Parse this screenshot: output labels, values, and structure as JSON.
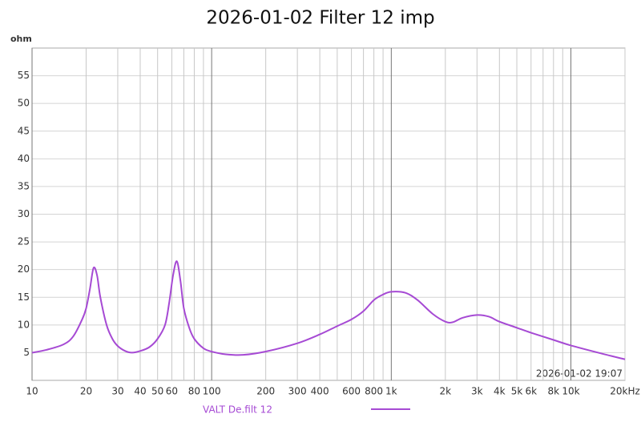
{
  "chart_data": {
    "type": "line",
    "title": "2026-01-02 Filter 12 imp",
    "y_label": "ohm",
    "annotation": "2026-01-02 19:07",
    "log_x": true,
    "xlim": [
      10,
      20000
    ],
    "ylim": [
      0,
      60
    ],
    "xticks": [
      10,
      20,
      30,
      40,
      50,
      60,
      80,
      100,
      200,
      300,
      400,
      600,
      800,
      {
        "value": 1000,
        "label": "1k"
      },
      {
        "value": 2000,
        "label": "2k"
      },
      {
        "value": 3000,
        "label": "3k"
      },
      {
        "value": 4000,
        "label": "4k"
      },
      {
        "value": 5000,
        "label": "5k"
      },
      {
        "value": 6000,
        "label": "6k"
      },
      {
        "value": 8000,
        "label": "8k"
      },
      {
        "value": 10000,
        "label": "10k"
      },
      {
        "value": 20000,
        "label": "20kHz"
      }
    ],
    "xgrid_minor": [
      70,
      90,
      500,
      700,
      900,
      7000,
      9000
    ],
    "yticks": [
      5,
      10,
      15,
      20,
      25,
      30,
      35,
      40,
      45,
      50,
      55
    ],
    "grid": true,
    "x": [
      10,
      12,
      15,
      17,
      19,
      20,
      21,
      22,
      23,
      24,
      26,
      28,
      30,
      33,
      36,
      40,
      45,
      50,
      55,
      58,
      61,
      64,
      67,
      70,
      75,
      80,
      90,
      100,
      120,
      150,
      200,
      300,
      400,
      500,
      600,
      700,
      800,
      900,
      1000,
      1200,
      1400,
      1700,
      2000,
      2200,
      2500,
      3000,
      3500,
      4000,
      5000,
      6000,
      8000,
      10000,
      15000,
      20000
    ],
    "series": [
      {
        "name": "VALT De.filt 12",
        "color": "#a64ad4",
        "values": [
          5.0,
          5.5,
          6.5,
          8,
          11,
          13,
          16.5,
          20.3,
          19,
          15,
          10,
          7.5,
          6.2,
          5.3,
          5.0,
          5.3,
          6,
          7.5,
          10,
          14,
          19,
          21.5,
          18,
          13,
          9.5,
          7.5,
          5.8,
          5.2,
          4.7,
          4.6,
          5.2,
          6.7,
          8.3,
          9.8,
          11,
          12.5,
          14.5,
          15.5,
          16,
          15.8,
          14.5,
          12,
          10.6,
          10.5,
          11.3,
          11.8,
          11.5,
          10.6,
          9.5,
          8.6,
          7.3,
          6.3,
          4.8,
          3.8
        ]
      }
    ]
  }
}
